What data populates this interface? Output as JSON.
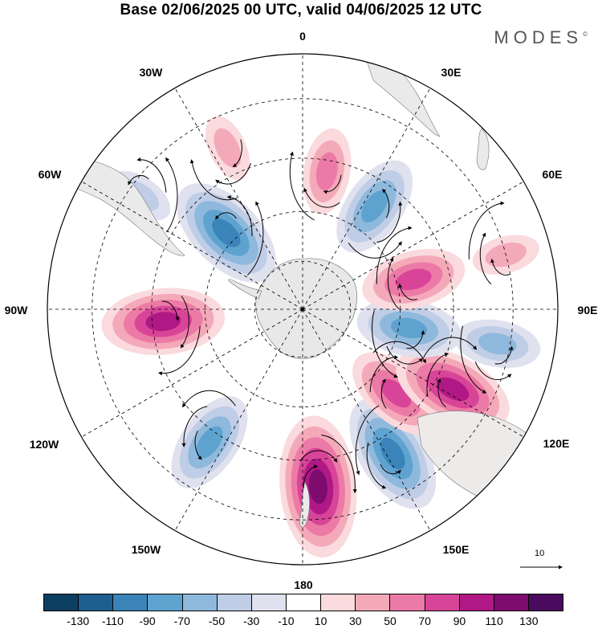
{
  "title": "Base 02/06/2025 00 UTC, valid 04/06/2025 12 UTC",
  "brand": "MODES",
  "brand_mark": "©",
  "projection": "south-polar-stereographic",
  "longitude_labels": {
    "top": "0",
    "top_right": "30E",
    "upper_right": "60E",
    "right": "90E",
    "lower_right": "120E",
    "bottom_right": "150E",
    "bottom": "180",
    "bottom_left": "150W",
    "lower_left": "120W",
    "left": "90W",
    "upper_left": "60W",
    "top_left": "30W"
  },
  "reference_vector_label": "10",
  "colorbar": {
    "colors": [
      "#0c3f62",
      "#1f5f8f",
      "#3b84b9",
      "#5ea3cf",
      "#8fb9dc",
      "#bfcde6",
      "#e0e1ef",
      "#ffffff",
      "#fadadd",
      "#f4a9b9",
      "#ec7aa6",
      "#d84598",
      "#b01985",
      "#7d0c6e",
      "#4a0b5e"
    ],
    "tick_labels": [
      "-130",
      "-110",
      "-90",
      "-70",
      "-50",
      "-30",
      "-10",
      "10",
      "30",
      "50",
      "70",
      "90",
      "110",
      "130"
    ]
  },
  "anomaly_centers": [
    {
      "sign": "negative",
      "lon": -45,
      "lat": -57,
      "magnitude": -90
    },
    {
      "sign": "positive",
      "lon": -95,
      "lat": -48,
      "magnitude": 90
    },
    {
      "sign": "negative",
      "lon": -145,
      "lat": -42,
      "magnitude": -70
    },
    {
      "sign": "positive",
      "lon": 175,
      "lat": -38,
      "magnitude": 110
    },
    {
      "sign": "negative",
      "lon": 148,
      "lat": -40,
      "magnitude": -90
    },
    {
      "sign": "positive",
      "lon": 132,
      "lat": -52,
      "magnitude": 70
    },
    {
      "sign": "positive",
      "lon": 118,
      "lat": -40,
      "magnitude": 90
    },
    {
      "sign": "negative",
      "lon": 100,
      "lat": -57,
      "magnitude": -70
    },
    {
      "sign": "positive",
      "lon": 75,
      "lat": -55,
      "magnitude": 70
    },
    {
      "sign": "negative",
      "lon": 35,
      "lat": -52,
      "magnitude": -70
    },
    {
      "sign": "positive",
      "lon": 10,
      "lat": -48,
      "magnitude": 50
    },
    {
      "sign": "positive",
      "lon": -25,
      "lat": -38,
      "magnitude": 30
    },
    {
      "sign": "negative",
      "lon": 100,
      "lat": -33,
      "magnitude": -50
    },
    {
      "sign": "positive",
      "lon": 75,
      "lat": -30,
      "magnitude": 30
    },
    {
      "sign": "negative",
      "lon": -55,
      "lat": -33,
      "magnitude": -30
    }
  ]
}
